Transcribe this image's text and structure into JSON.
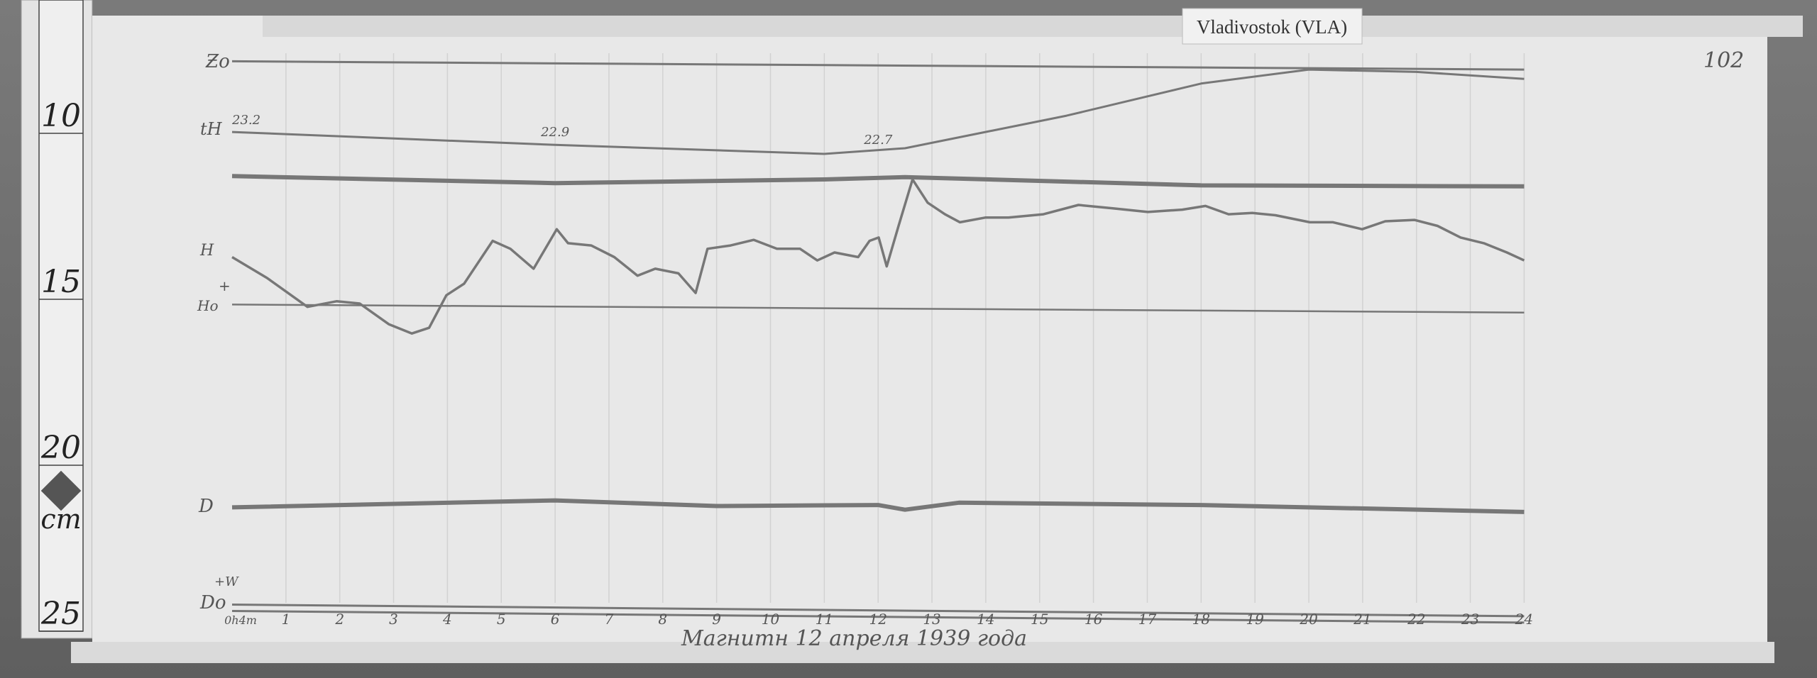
{
  "station_label": "Vladivostok (VLA)",
  "sheet_number": "102",
  "date_caption": "Магнитн 12 апреля 1939 года",
  "ruler": {
    "ticks": [
      "10",
      "15",
      "20",
      "25"
    ],
    "unit": "cm"
  },
  "chart_data": {
    "type": "line",
    "title": "",
    "xlabel": "",
    "ylabel": "",
    "x_units": "hours",
    "y_units": "cm (ruler scale)",
    "xlim": [
      0,
      24
    ],
    "ylim": [
      8,
      26
    ],
    "grid": "vertical hour lines",
    "x_tick_labels": [
      "0h4m",
      "1",
      "2",
      "3",
      "4",
      "5",
      "6",
      "7",
      "8",
      "9",
      "10",
      "11",
      "12",
      "13",
      "14",
      "15",
      "16",
      "17",
      "18",
      "19",
      "20",
      "21",
      "22",
      "23",
      "24"
    ],
    "trace_labels": {
      "z0": "Ƶo",
      "th": "tH",
      "h": "H",
      "h0": "Ho",
      "h0_sign": "+",
      "d": "D",
      "d0": "Do",
      "d0_sign": "+W"
    },
    "temperature_annotations": [
      {
        "x": 0,
        "text": "23.2"
      },
      {
        "x": 6,
        "text": "22.9"
      },
      {
        "x": 12,
        "text": "22.7"
      }
    ],
    "series": [
      {
        "key": "z0",
        "x": [
          0,
          24
        ],
        "y": [
          8.47,
          8.72
        ]
      },
      {
        "key": "th",
        "x": [
          0,
          6,
          11,
          12.5,
          15.5,
          18,
          20,
          22,
          24
        ],
        "y": [
          10.6,
          10.99,
          11.26,
          11.09,
          10.11,
          9.14,
          8.72,
          8.79,
          9.0
        ]
      },
      {
        "key": "z",
        "x": [
          0,
          6,
          11,
          12.5,
          18,
          24
        ],
        "y": [
          11.93,
          12.14,
          12.03,
          11.96,
          12.21,
          12.24
        ]
      },
      {
        "key": "h",
        "x": [
          0,
          0.65,
          1.4,
          1.94,
          2.37,
          2.91,
          3.34,
          3.66,
          3.98,
          4.31,
          4.84,
          5.17,
          5.6,
          6.03,
          6.24,
          6.67,
          7.1,
          7.53,
          7.86,
          8.29,
          8.61,
          8.83,
          9.26,
          9.69,
          10.12,
          10.55,
          10.87,
          11.19,
          11.63,
          11.84,
          12.01,
          12.16,
          12.38,
          12.64,
          12.92,
          13.24,
          13.52,
          13.99,
          14.42,
          15.07,
          15.72,
          16.36,
          17.01,
          17.65,
          18.08,
          18.51,
          18.95,
          19.38,
          20.02,
          20.45,
          20.99,
          21.42,
          21.96,
          22.39,
          22.82,
          23.25,
          23.68,
          24
        ],
        "y": [
          14.37,
          15.0,
          15.87,
          15.7,
          15.77,
          16.39,
          16.67,
          16.5,
          15.52,
          15.17,
          13.88,
          14.12,
          14.72,
          13.53,
          13.95,
          14.02,
          14.37,
          14.93,
          14.72,
          14.86,
          15.45,
          14.12,
          14.02,
          13.85,
          14.12,
          14.12,
          14.47,
          14.23,
          14.37,
          13.88,
          13.78,
          14.65,
          13.43,
          12.03,
          12.73,
          13.08,
          13.32,
          13.18,
          13.18,
          13.08,
          12.8,
          12.9,
          13.01,
          12.94,
          12.83,
          13.08,
          13.04,
          13.11,
          13.32,
          13.32,
          13.53,
          13.29,
          13.25,
          13.43,
          13.78,
          13.95,
          14.23,
          14.47
        ]
      },
      {
        "key": "h0",
        "x": [
          0,
          24
        ],
        "y": [
          15.8,
          16.04
        ]
      },
      {
        "key": "d",
        "x": [
          0,
          6,
          9,
          12,
          12.5,
          13.5,
          18,
          24
        ],
        "y": [
          21.91,
          21.7,
          21.87,
          21.84,
          21.98,
          21.77,
          21.84,
          22.05
        ]
      },
      {
        "key": "d0",
        "x": [
          0,
          24
        ],
        "y": [
          24.84,
          25.19
        ]
      }
    ],
    "colors": {
      "paper": "#e8e8e8",
      "trace": "#777777",
      "grid": "#d2d2d2"
    }
  }
}
